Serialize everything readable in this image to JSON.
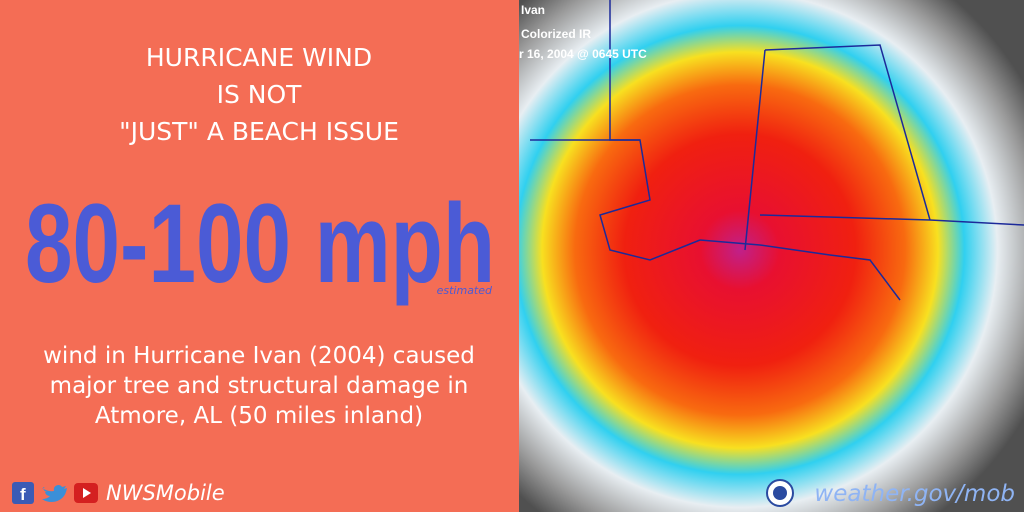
{
  "headline": [
    "HURRICANE WIND",
    "IS NOT",
    "\"JUST\" A BEACH ISSUE"
  ],
  "big_number": "80-100 mph",
  "note": "estimated",
  "description": [
    "wind in Hurricane Ivan (2004) caused",
    "major tree and structural damage in",
    "Atmore, AL (50 miles inland)"
  ],
  "social_handle": "NWSMobile",
  "image_labels": [
    "Ivan",
    "Colorized IR",
    "r 16, 2004 @ 0645 UTC"
  ],
  "website": "weather.gov/mob"
}
